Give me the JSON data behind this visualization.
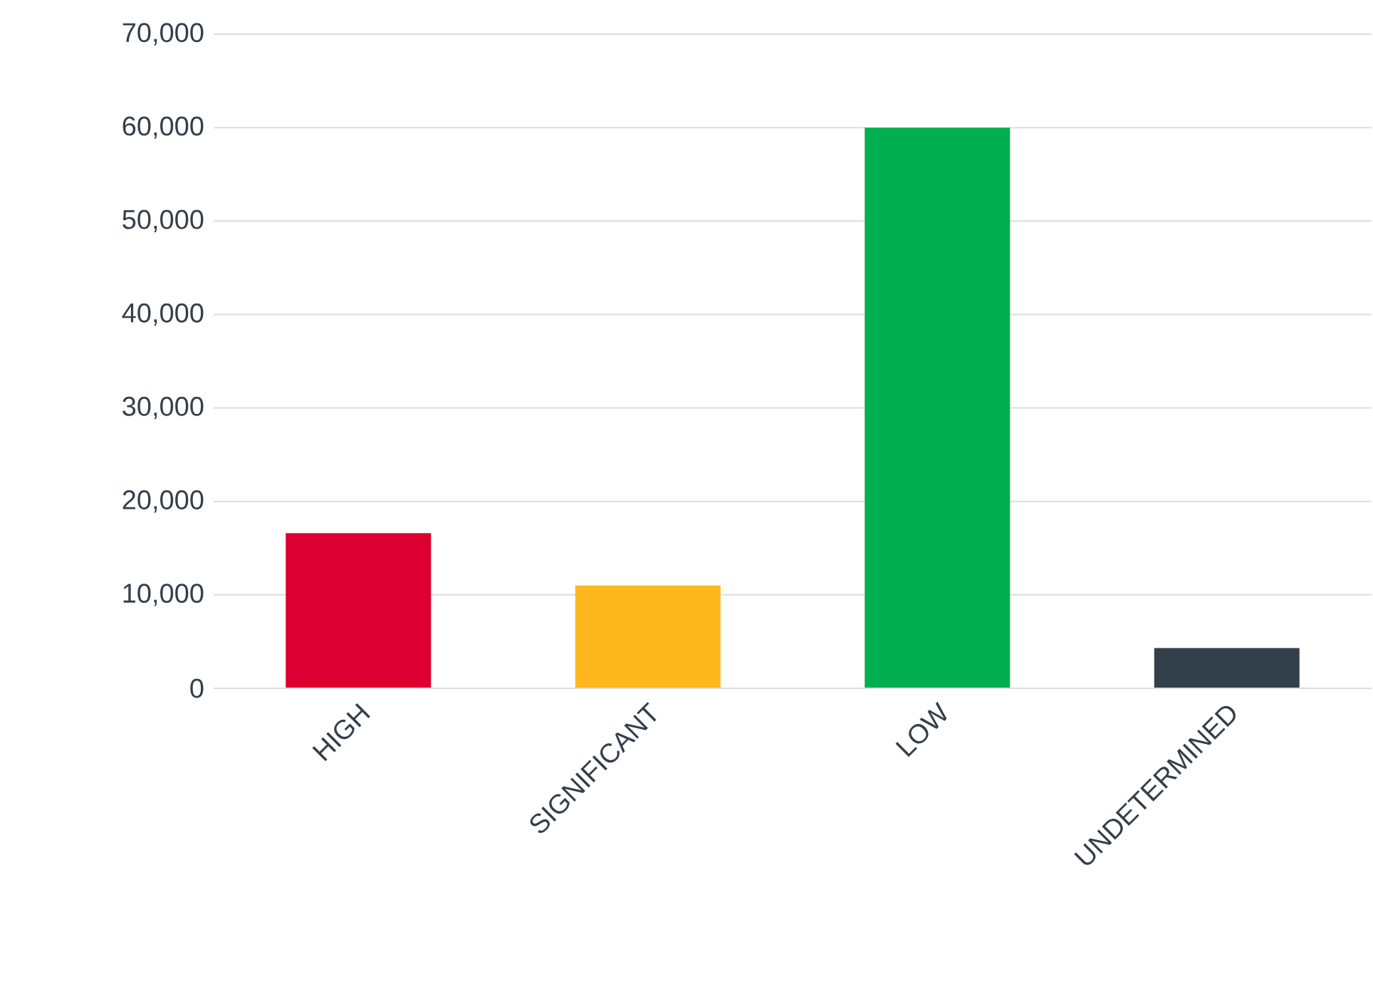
{
  "chart_data": {
    "type": "bar",
    "categories": [
      "HIGH",
      "SIGNIFICANT",
      "LOW",
      "UNDETERMINED"
    ],
    "values": [
      16600,
      11000,
      60000,
      4300
    ],
    "colors": [
      "#dc0032",
      "#ffb71e",
      "#00af50",
      "#333f4a"
    ],
    "ylim": [
      0,
      70000
    ],
    "yticks": [
      {
        "value": 0,
        "label": "0"
      },
      {
        "value": 10000,
        "label": "10,000"
      },
      {
        "value": 20000,
        "label": "20,000"
      },
      {
        "value": 30000,
        "label": "30,000"
      },
      {
        "value": 40000,
        "label": "40,000"
      },
      {
        "value": 50000,
        "label": "50,000"
      },
      {
        "value": 60000,
        "label": "60,000"
      },
      {
        "value": 70000,
        "label": "70,000"
      }
    ],
    "grid": "y"
  }
}
